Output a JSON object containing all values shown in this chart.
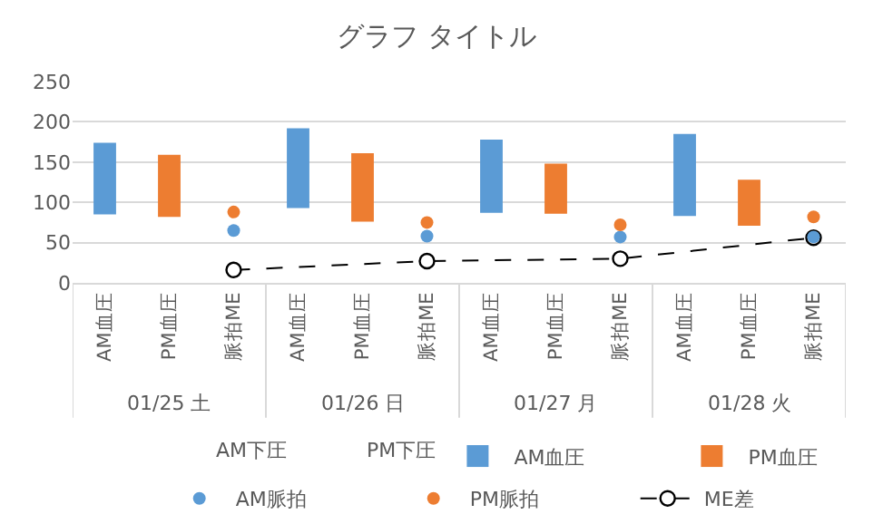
{
  "chart_data": {
    "type": "bar",
    "title": "グラフ タイトル",
    "grid": "y",
    "legend": "bottom",
    "ylim": [
      0,
      250
    ],
    "yticks": [
      0,
      50,
      100,
      150,
      200,
      250
    ],
    "categories": [
      "AM血圧",
      "PM血圧",
      "脈拍ME",
      "AM血圧",
      "PM血圧",
      "脈拍ME",
      "AM血圧",
      "PM血圧",
      "脈拍ME",
      "AM血圧",
      "PM血圧",
      "脈拍ME"
    ],
    "annotations": [
      "01/25 土",
      "01/26 日",
      "01/27 月",
      "01/28 火",
      "AM下圧",
      "PM下圧"
    ],
    "series": [
      {
        "name": "AM血圧",
        "color": "#5b9bd5",
        "base": [
          85,
          null,
          null,
          93,
          null,
          null,
          87,
          null,
          null,
          83,
          null,
          null
        ],
        "values": [
          89,
          null,
          null,
          99,
          null,
          null,
          91,
          null,
          null,
          102,
          null,
          null
        ]
      },
      {
        "name": "PM血圧",
        "color": "#ed7d31",
        "base": [
          null,
          82,
          null,
          null,
          76,
          null,
          null,
          86,
          null,
          null,
          71,
          null
        ],
        "values": [
          null,
          77,
          null,
          null,
          85,
          null,
          null,
          62,
          null,
          null,
          57,
          null
        ]
      },
      {
        "name": "AM脈拍",
        "type": "scatter",
        "marker": "circle",
        "color": "#5b9bd5",
        "values": [
          null,
          null,
          65,
          null,
          null,
          58,
          null,
          null,
          57,
          null,
          null,
          57
        ]
      },
      {
        "name": "PM脈拍",
        "type": "scatter",
        "marker": "circle",
        "color": "#ed7d31",
        "values": [
          null,
          null,
          88,
          null,
          null,
          75,
          null,
          null,
          72,
          null,
          null,
          82
        ]
      },
      {
        "name": "ME差",
        "type": "line",
        "marker": "circle",
        "line_style": "dashed",
        "color": "#000000",
        "values": [
          null,
          null,
          16,
          null,
          null,
          27,
          null,
          null,
          30,
          null,
          null,
          56
        ]
      }
    ]
  }
}
